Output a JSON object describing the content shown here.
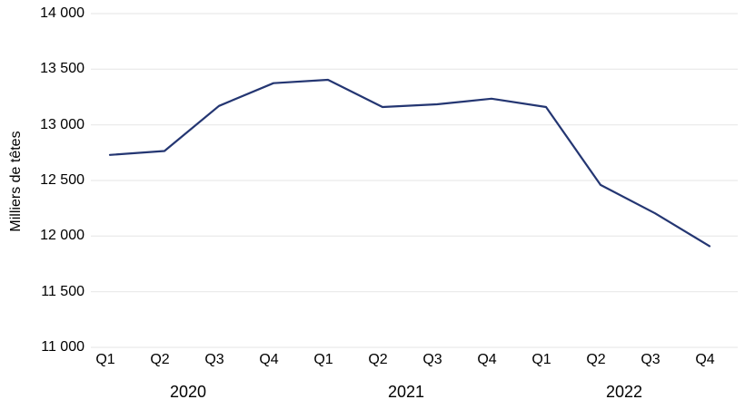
{
  "chart_data": {
    "type": "line",
    "title": "",
    "ylabel": "Milliers de têtes",
    "xlabel": "",
    "categories": [
      "Q1",
      "Q2",
      "Q3",
      "Q4",
      "Q1",
      "Q2",
      "Q3",
      "Q4",
      "Q1",
      "Q2",
      "Q3",
      "Q4"
    ],
    "year_groups": [
      {
        "label": "2020",
        "start_index": 0,
        "end_index": 3
      },
      {
        "label": "2021",
        "start_index": 4,
        "end_index": 7
      },
      {
        "label": "2022",
        "start_index": 8,
        "end_index": 11
      }
    ],
    "series": [
      {
        "name": "Milliers de têtes",
        "values": [
          12730,
          12765,
          13170,
          13375,
          13405,
          13160,
          13185,
          13235,
          13160,
          12460,
          12205,
          11910
        ]
      }
    ],
    "ylim": [
      11000,
      14000
    ],
    "ytick_step": 500,
    "ytick_labels": [
      "14 000",
      "13 500",
      "13 000",
      "12 500",
      "12 000",
      "11 500",
      "11 000"
    ],
    "ytick_values": [
      14000,
      13500,
      13000,
      12500,
      12000,
      11500,
      11000
    ],
    "grid": "horizontal",
    "legend": "none",
    "line_color": "#243672",
    "grid_color": "#ebebeb",
    "text_color": "#000000"
  }
}
